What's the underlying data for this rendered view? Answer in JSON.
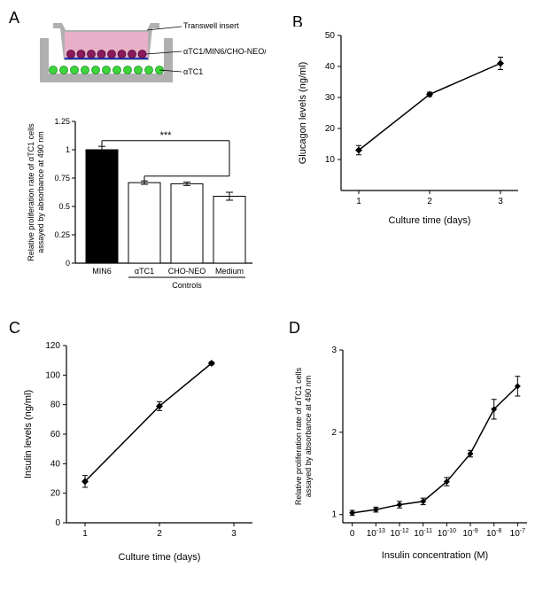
{
  "panelA": {
    "label": "A",
    "diagram": {
      "labels": [
        "Transwell insert",
        "αTC1/MIN6/CHO-NEO/Medium",
        "αTC1"
      ],
      "frame_color": "#b0b0b0",
      "medium_color": "#e8b0c8",
      "insert_line_color": "#1a3abf",
      "top_cell_color": "#8b1a5c",
      "bottom_cell_color": "#3cd63c"
    },
    "barChart": {
      "ylabel": "Relative proliferation rate of αTC1 cells\nassayed by absorbance at 490 nm",
      "categories": [
        "MIN6",
        "αTC1",
        "CHO-NEO",
        "Medium"
      ],
      "group_label": "Controls",
      "values": [
        1.0,
        0.71,
        0.7,
        0.59
      ],
      "errors": [
        0.03,
        0.015,
        0.015,
        0.035
      ],
      "bar_colors": [
        "#000000",
        "#ffffff",
        "#ffffff",
        "#ffffff"
      ],
      "ylim": [
        0,
        1.25
      ],
      "yticks": [
        0,
        0.25,
        0.5,
        0.75,
        1,
        1.25
      ],
      "significance": "***",
      "label_fontsize": 9,
      "tick_fontsize": 9
    }
  },
  "panelB": {
    "label": "B",
    "ylabel": "Glucagon levels (ng/ml)",
    "xlabel": "Culture time (days)",
    "x": [
      1,
      2,
      3
    ],
    "y": [
      13,
      31,
      41
    ],
    "yerr": [
      1.5,
      0.7,
      2.0
    ],
    "ylim": [
      0,
      50
    ],
    "yticks": [
      10,
      20,
      30,
      40,
      50
    ],
    "xlim": [
      0.75,
      3.25
    ],
    "line_color": "#000000",
    "label_fontsize": 11,
    "tick_fontsize": 10
  },
  "panelC": {
    "label": "C",
    "ylabel": "Insulin levels (ng/ml)",
    "xlabel": "Culture time (days)",
    "x": [
      1,
      2,
      2.7
    ],
    "y": [
      28,
      79,
      108
    ],
    "yerr": [
      4,
      3,
      1
    ],
    "ylim": [
      0,
      120
    ],
    "yticks": [
      0,
      20,
      40,
      60,
      80,
      100,
      120
    ],
    "xlim": [
      0.75,
      3.25
    ],
    "line_color": "#000000",
    "label_fontsize": 11,
    "tick_fontsize": 10
  },
  "panelD": {
    "label": "D",
    "ylabel": "Relative proliferation rate of αTC1 cells\nassayed by absorbance at 490 nm",
    "xlabel": "Insulin concentration (M)",
    "xticks_labels": [
      "0",
      "10⁻¹³",
      "10⁻¹²",
      "10⁻¹¹",
      "10⁻¹⁰",
      "10⁻⁹",
      "10⁻⁸",
      "10⁻⁷"
    ],
    "xticks_pos": [
      0,
      1,
      2,
      3,
      4,
      5,
      6,
      7
    ],
    "y": [
      1.02,
      1.06,
      1.12,
      1.16,
      1.4,
      1.74,
      2.28,
      2.56
    ],
    "yerr": [
      0.03,
      0.03,
      0.04,
      0.04,
      0.05,
      0.04,
      0.12,
      0.12
    ],
    "ylim": [
      0.9,
      3
    ],
    "yticks": [
      1,
      2,
      3
    ],
    "line_color": "#000000",
    "label_fontsize": 9,
    "tick_fontsize": 10
  }
}
